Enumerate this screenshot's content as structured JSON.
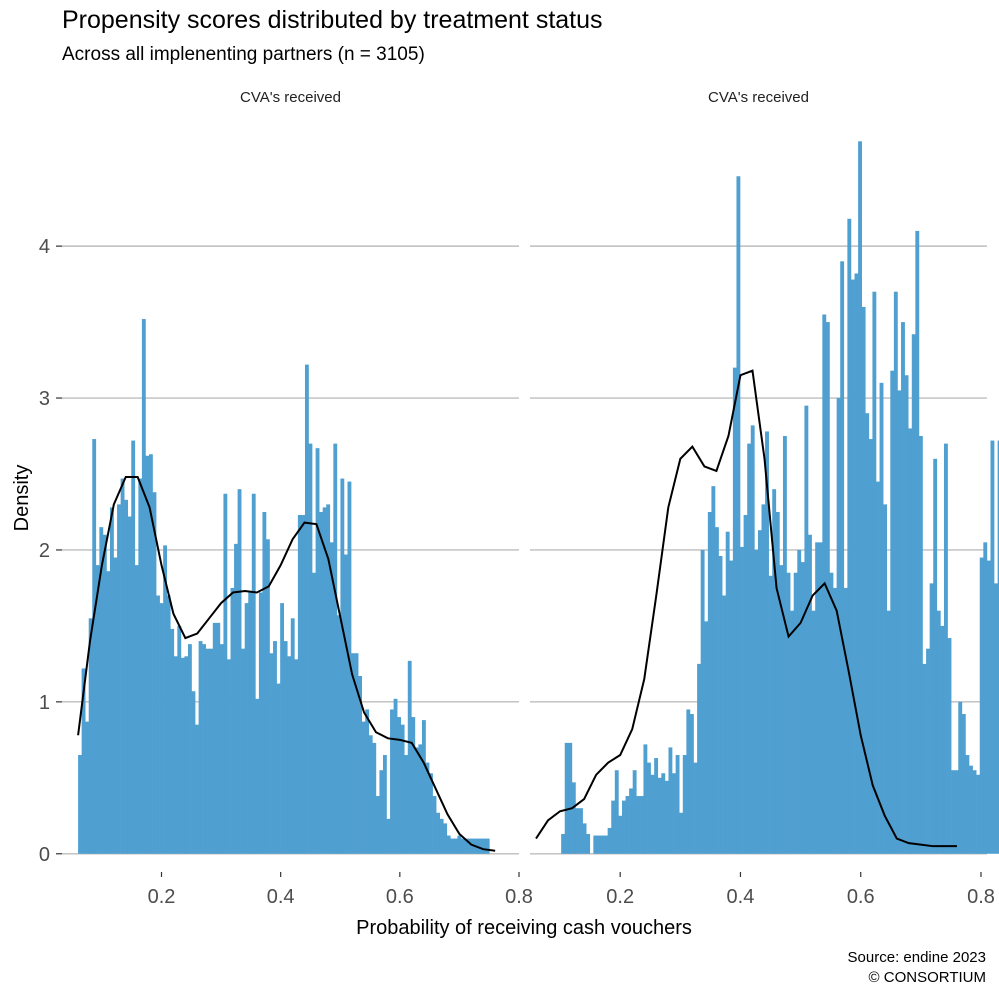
{
  "title": "Propensity scores distributed by treatment status",
  "subtitle": "Across all implenenting partners (n = 3105)",
  "caption": [
    "Source: endine 2023",
    "© CONSORTIUM"
  ],
  "colors": {
    "bars": "#4f9fd1",
    "density": "#000000",
    "grid": "#bdbdbd"
  },
  "chart_data": {
    "type": "histogram+density",
    "xlabel": "Probability of receiving cash vouchers",
    "ylabel": "Density",
    "grid": "horizontal-major",
    "shared_y": {
      "ylim": [
        -0.12,
        4.85
      ],
      "ticks": [
        0,
        1,
        2,
        3,
        4
      ]
    },
    "panels": [
      {
        "strip": "CVA's received",
        "xlim": [
          0.033,
          0.8
        ],
        "xticks": [
          0.2,
          0.4,
          0.6,
          0.8
        ],
        "bin_start": 0.06,
        "bin_width": 0.00595,
        "bars": [
          0.65,
          1.22,
          0.87,
          1.55,
          2.73,
          1.9,
          2.15,
          2.1,
          1.86,
          2.28,
          1.95,
          2.3,
          2.47,
          2.33,
          2.22,
          2.72,
          1.9,
          2.47,
          3.52,
          2.62,
          2.63,
          2.38,
          1.7,
          1.65,
          2.03,
          1.7,
          1.48,
          1.3,
          1.5,
          1.29,
          1.3,
          1.38,
          1.07,
          0.85,
          1.4,
          1.38,
          1.35,
          1.35,
          1.52,
          1.52,
          1.38,
          2.37,
          1.28,
          1.75,
          2.04,
          2.4,
          1.35,
          1.65,
          1.72,
          2.37,
          1.02,
          1.72,
          2.25,
          2.07,
          1.32,
          1.4,
          1.12,
          1.65,
          1.4,
          1.3,
          1.55,
          1.28,
          2.23,
          2.23,
          3.22,
          2.7,
          1.85,
          2.67,
          2.25,
          2.28,
          2.3,
          2.05,
          2.7,
          1.57,
          2.47,
          1.97,
          2.45,
          1.32,
          1.32,
          1.17,
          0.87,
          0.95,
          0.78,
          0.73,
          0.38,
          0.55,
          0.65,
          0.23,
          0.95,
          1.02,
          0.9,
          0.85,
          0.65,
          1.27,
          0.9,
          0.7,
          0.72,
          0.88,
          0.6,
          0.53,
          0.38,
          0.27,
          0.23,
          0.2,
          0.12,
          0.1,
          0.1,
          0.12,
          0.1,
          0.1,
          0.1,
          0.1,
          0.1,
          0.1,
          0.1,
          0.1
        ],
        "density_x": [
          0.06,
          0.08,
          0.1,
          0.12,
          0.14,
          0.16,
          0.18,
          0.2,
          0.22,
          0.24,
          0.26,
          0.28,
          0.3,
          0.32,
          0.34,
          0.36,
          0.38,
          0.4,
          0.42,
          0.44,
          0.46,
          0.48,
          0.5,
          0.52,
          0.54,
          0.56,
          0.58,
          0.6,
          0.62,
          0.64,
          0.66,
          0.68,
          0.7,
          0.72,
          0.74,
          0.76
        ],
        "density_y": [
          0.78,
          1.4,
          1.9,
          2.3,
          2.48,
          2.48,
          2.28,
          1.9,
          1.58,
          1.42,
          1.45,
          1.55,
          1.65,
          1.72,
          1.73,
          1.72,
          1.76,
          1.9,
          2.07,
          2.18,
          2.17,
          1.94,
          1.56,
          1.18,
          0.93,
          0.8,
          0.76,
          0.75,
          0.73,
          0.6,
          0.43,
          0.26,
          0.13,
          0.06,
          0.03,
          0.02
        ]
      },
      {
        "strip": "CVA's received",
        "xlim": [
          0.05,
          0.81
        ],
        "xticks": [
          0.2,
          0.4,
          0.6,
          0.8
        ],
        "bin_start": 0.078,
        "bin_width": 0.00595,
        "bars": [
          0.0,
          0.0,
          0.0,
          0.0,
          0.13,
          0.73,
          0.73,
          0.47,
          0.3,
          0.3,
          0.2,
          0.13,
          0.0,
          0.12,
          0.12,
          0.12,
          0.12,
          0.17,
          0.35,
          0.55,
          0.25,
          0.35,
          0.38,
          0.43,
          0.55,
          0.38,
          0.38,
          0.72,
          0.6,
          0.52,
          0.63,
          0.5,
          0.53,
          0.48,
          0.7,
          0.53,
          0.65,
          0.27,
          0.65,
          0.95,
          0.92,
          0.6,
          1.25,
          2.0,
          1.53,
          2.25,
          2.42,
          2.15,
          1.96,
          1.7,
          2.12,
          1.93,
          3.2,
          4.46,
          2.02,
          2.23,
          2.7,
          2.82,
          2.0,
          2.13,
          2.3,
          2.78,
          1.83,
          2.4,
          2.25,
          1.9,
          2.75,
          1.85,
          1.6,
          1.85,
          2.0,
          1.92,
          2.95,
          2.1,
          1.6,
          2.05,
          2.05,
          3.55,
          3.5,
          1.85,
          1.75,
          3.0,
          3.9,
          1.75,
          4.18,
          3.78,
          3.82,
          4.69,
          3.6,
          2.9,
          2.73,
          3.7,
          2.45,
          3.1,
          2.3,
          1.6,
          3.18,
          3.7,
          3.05,
          3.5,
          3.15,
          2.8,
          3.42,
          4.1,
          2.75,
          1.25,
          1.35,
          1.78,
          2.6,
          1.6,
          1.5,
          2.7,
          1.42,
          0.55,
          0.55,
          1.0,
          0.92,
          0.65,
          0.58,
          0.55,
          0.52,
          1.95,
          2.05,
          1.93,
          2.72,
          1.78,
          2.72,
          0.7,
          1.0,
          1.17,
          0.88,
          0.8,
          1.0,
          0.87,
          0.48,
          0.58,
          0.53,
          0.52,
          0.48,
          0.32,
          0.3,
          0.22,
          0.22,
          0.13,
          0.12,
          0.13,
          0.11,
          0.1,
          0.1,
          0.1
        ],
        "density_x": [
          0.06,
          0.08,
          0.1,
          0.12,
          0.14,
          0.16,
          0.18,
          0.2,
          0.22,
          0.24,
          0.26,
          0.28,
          0.3,
          0.32,
          0.34,
          0.36,
          0.38,
          0.4,
          0.42,
          0.44,
          0.46,
          0.48,
          0.5,
          0.52,
          0.54,
          0.56,
          0.58,
          0.6,
          0.62,
          0.64,
          0.66,
          0.68,
          0.7,
          0.72,
          0.74,
          0.76
        ],
        "density_y": [
          0.1,
          0.22,
          0.28,
          0.3,
          0.36,
          0.52,
          0.6,
          0.65,
          0.82,
          1.15,
          1.7,
          2.28,
          2.6,
          2.68,
          2.55,
          2.52,
          2.75,
          3.15,
          3.18,
          2.6,
          1.75,
          1.43,
          1.52,
          1.7,
          1.78,
          1.6,
          1.2,
          0.78,
          0.45,
          0.25,
          0.1,
          0.07,
          0.06,
          0.05,
          0.05,
          0.05
        ]
      }
    ]
  }
}
